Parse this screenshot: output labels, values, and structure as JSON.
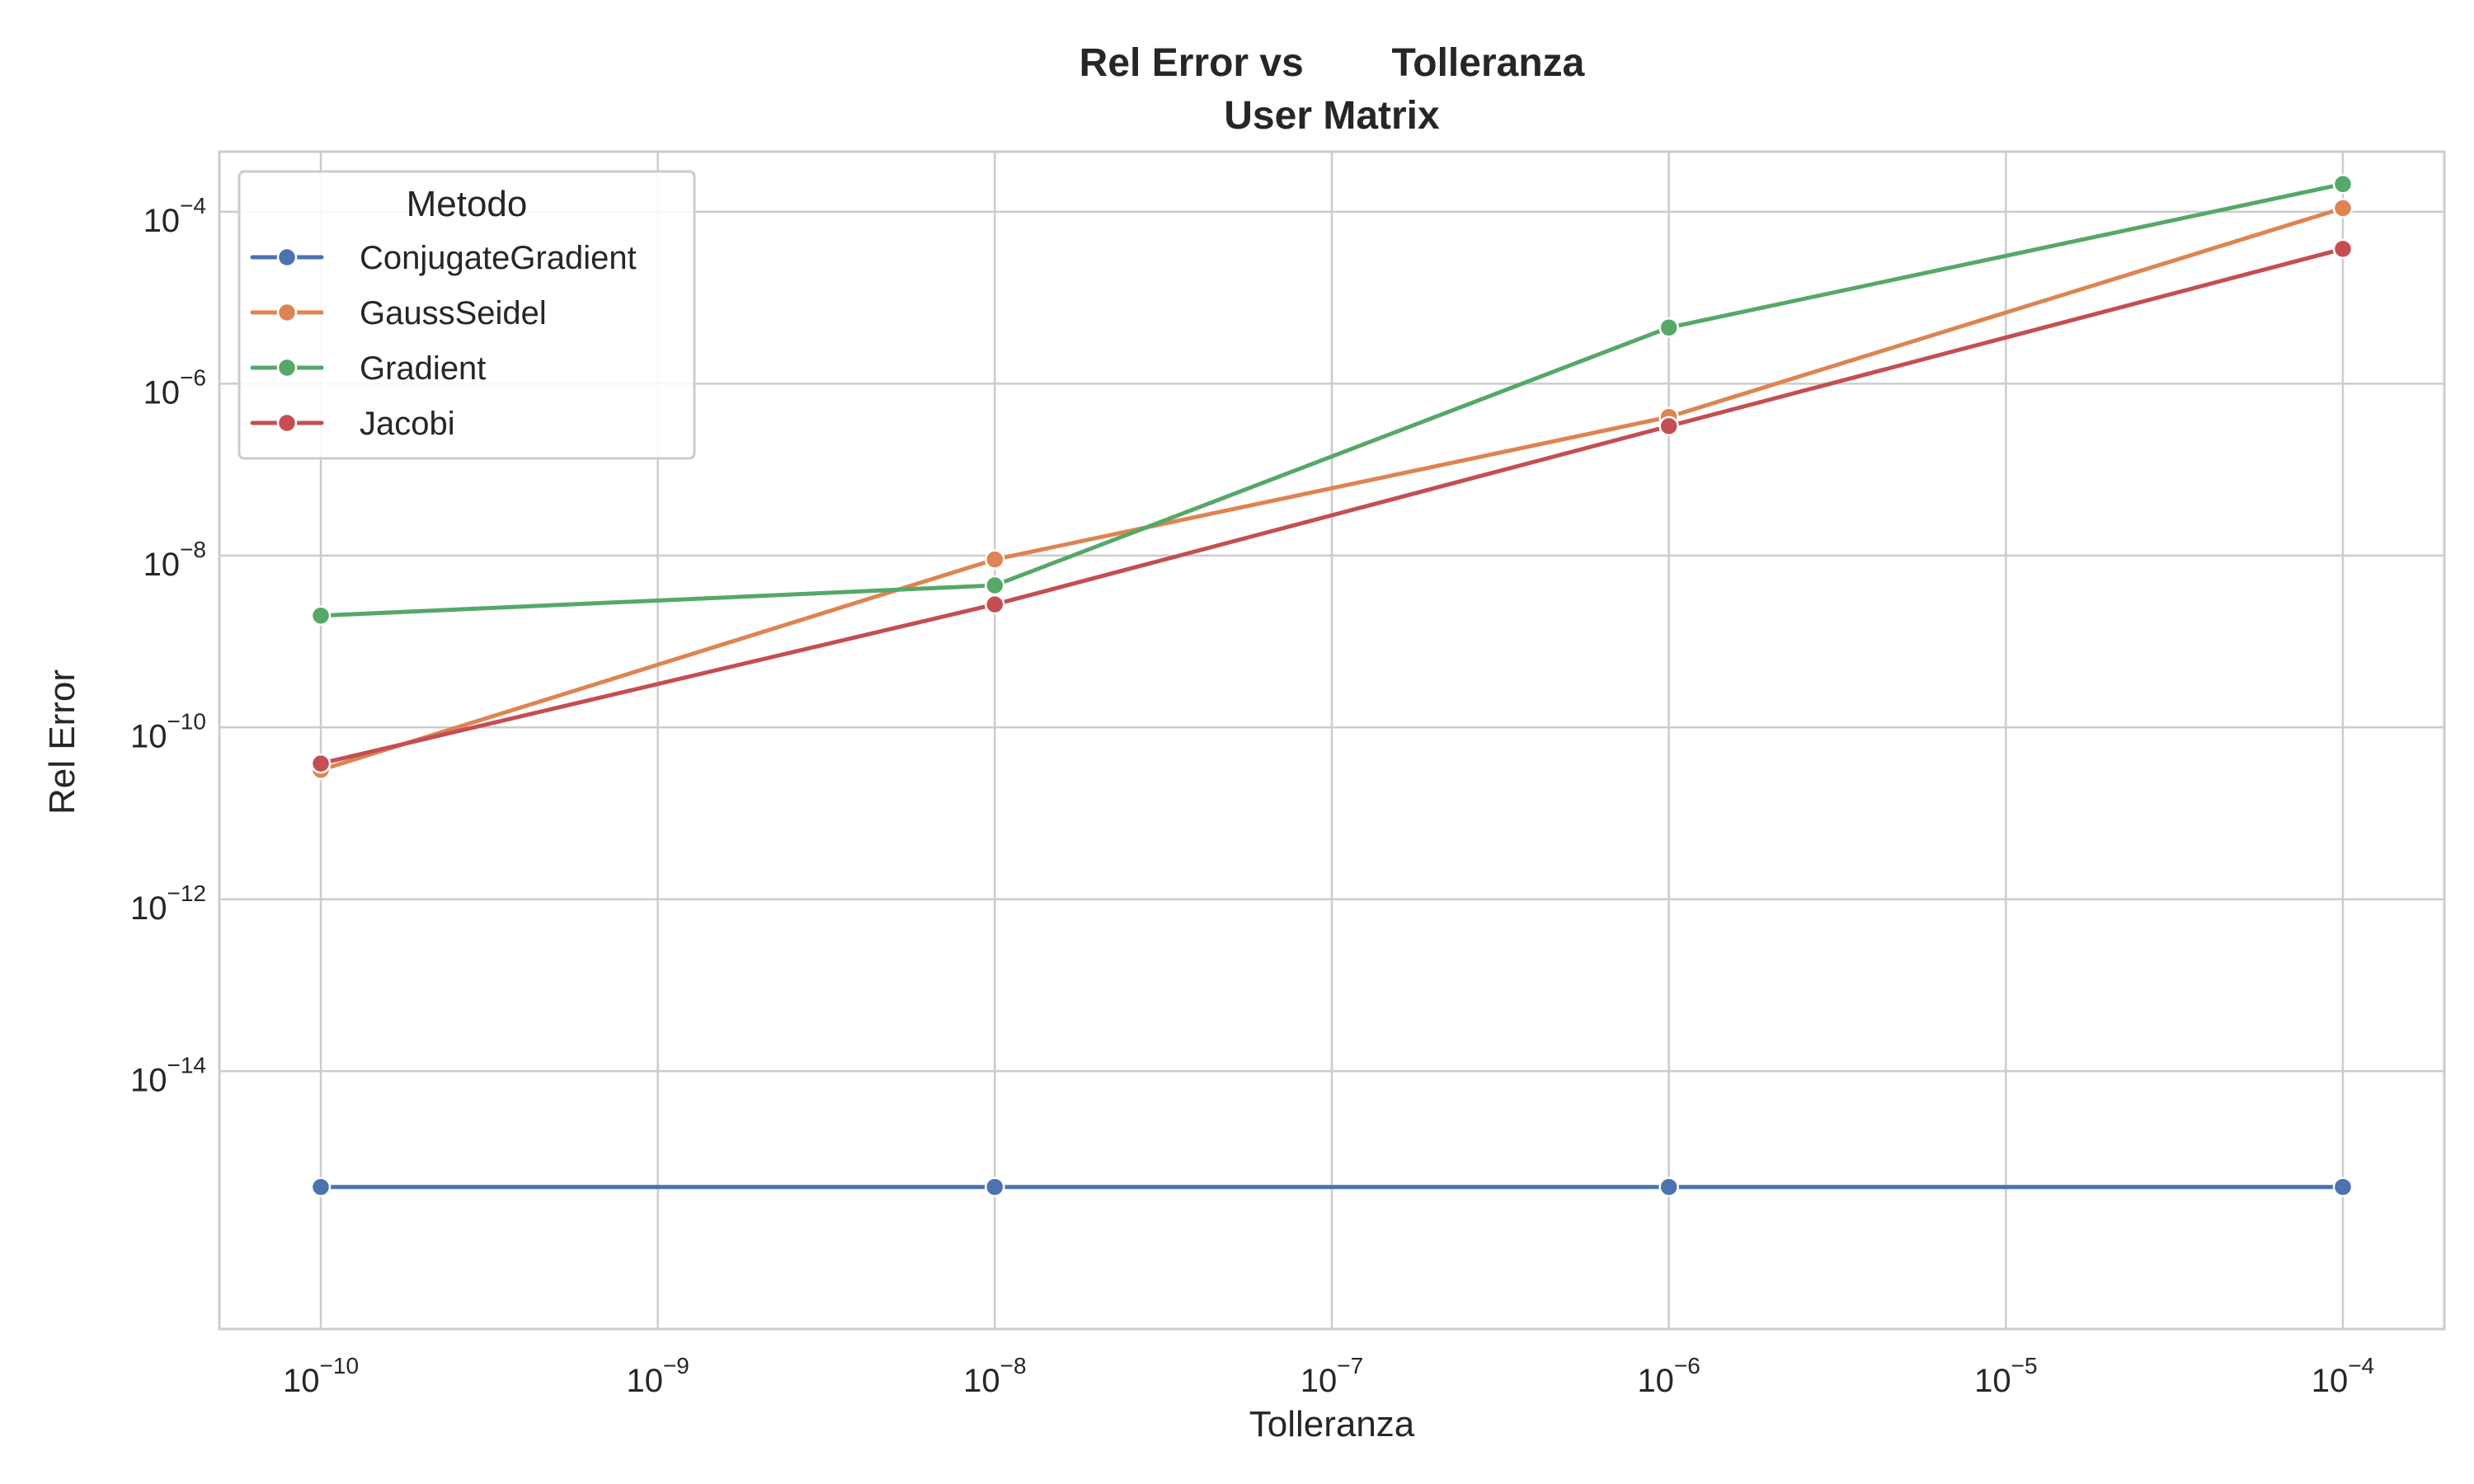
{
  "chart_data": {
    "type": "line",
    "title_line1": "Rel Error vs        Tolleranza",
    "title_line2": "User Matrix",
    "xlabel": "Tolleranza",
    "ylabel": "Rel Error",
    "x_scale": "log",
    "y_scale": "log",
    "xlim": [
      5e-11,
      0.0002
    ],
    "ylim": [
      1e-17,
      0.0005
    ],
    "grid": true,
    "x_ticks": [
      {
        "value": 1e-10,
        "base": "10",
        "exp": "−10"
      },
      {
        "value": 1e-09,
        "base": "10",
        "exp": "−9"
      },
      {
        "value": 1e-08,
        "base": "10",
        "exp": "−8"
      },
      {
        "value": 1e-07,
        "base": "10",
        "exp": "−7"
      },
      {
        "value": 1e-06,
        "base": "10",
        "exp": "−6"
      },
      {
        "value": 1e-05,
        "base": "10",
        "exp": "−5"
      },
      {
        "value": 0.0001,
        "base": "10",
        "exp": "−4"
      }
    ],
    "y_ticks": [
      {
        "value": 1e-14,
        "base": "10",
        "exp": "−14"
      },
      {
        "value": 1e-12,
        "base": "10",
        "exp": "−12"
      },
      {
        "value": 1e-10,
        "base": "10",
        "exp": "−10"
      },
      {
        "value": 1e-08,
        "base": "10",
        "exp": "−8"
      },
      {
        "value": 1e-06,
        "base": "10",
        "exp": "−6"
      },
      {
        "value": 0.0001,
        "base": "10",
        "exp": "−4"
      }
    ],
    "legend": {
      "title": "Metodo",
      "placement": "top-left"
    },
    "x": [
      1e-10,
      1e-08,
      1e-06,
      0.0001
    ],
    "series": [
      {
        "name": "ConjugateGradient",
        "color": "#4c72b0",
        "values": [
          4.5e-16,
          4.5e-16,
          4.5e-16,
          4.5e-16
        ]
      },
      {
        "name": "GaussSeidel",
        "color": "#dd8452",
        "values": [
          3.2e-11,
          9e-09,
          4.1e-07,
          0.00011
        ]
      },
      {
        "name": "Gradient",
        "color": "#55a868",
        "values": [
          2e-09,
          4.5e-09,
          4.5e-06,
          0.00021
        ]
      },
      {
        "name": "Jacobi",
        "color": "#c44e52",
        "values": [
          3.8e-11,
          2.7e-09,
          3.2e-07,
          3.7e-05
        ]
      }
    ]
  }
}
